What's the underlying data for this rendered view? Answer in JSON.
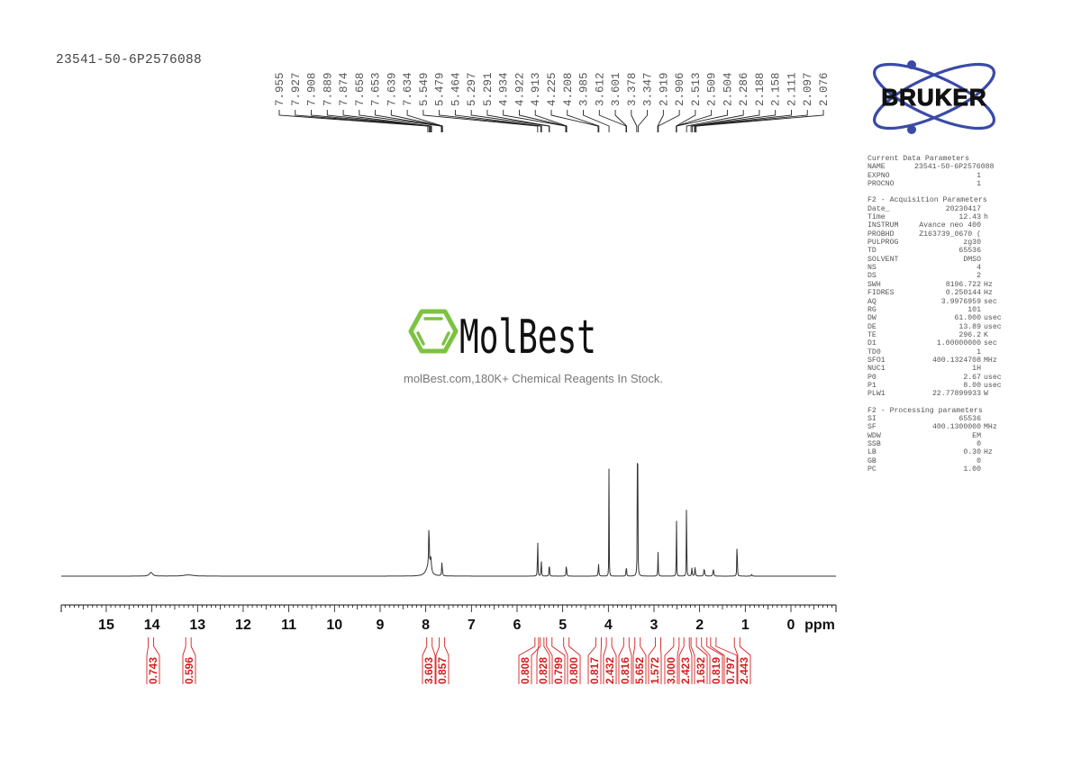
{
  "header": {
    "sample_id": "23541-50-6P2576088"
  },
  "logo": {
    "brand": "BRUKER",
    "brand_color": "#3a4aa8"
  },
  "watermark": {
    "name": "MolBest",
    "tagline": "molBest.com,180K+ Chemical Reagents In Stock.",
    "accent_color": "#7dc242"
  },
  "params": {
    "current": {
      "title": "Current Data Parameters",
      "rows": [
        {
          "k": "NAME",
          "v": "23541-50-6P2576088",
          "u": ""
        },
        {
          "k": "EXPNO",
          "v": "1",
          "u": ""
        },
        {
          "k": "PROCNO",
          "v": "1",
          "u": ""
        }
      ]
    },
    "acquisition": {
      "title": "F2 - Acquisition Parameters",
      "rows": [
        {
          "k": "Date_",
          "v": "20230417",
          "u": ""
        },
        {
          "k": "Time",
          "v": "12.43",
          "u": "h"
        },
        {
          "k": "INSTRUM",
          "v": "Avance neo 400",
          "u": ""
        },
        {
          "k": "PROBHD",
          "v": "Z163739_0670 (",
          "u": ""
        },
        {
          "k": "PULPROG",
          "v": "zg30",
          "u": ""
        },
        {
          "k": "TD",
          "v": "65536",
          "u": ""
        },
        {
          "k": "SOLVENT",
          "v": "DMSO",
          "u": ""
        },
        {
          "k": "NS",
          "v": "4",
          "u": ""
        },
        {
          "k": "DS",
          "v": "2",
          "u": ""
        },
        {
          "k": "SWH",
          "v": "8196.722",
          "u": "Hz"
        },
        {
          "k": "FIDRES",
          "v": "0.250144",
          "u": "Hz"
        },
        {
          "k": "AQ",
          "v": "3.9976959",
          "u": "sec"
        },
        {
          "k": "RG",
          "v": "101",
          "u": ""
        },
        {
          "k": "DW",
          "v": "61.000",
          "u": "usec"
        },
        {
          "k": "DE",
          "v": "13.89",
          "u": "usec"
        },
        {
          "k": "TE",
          "v": "296.2",
          "u": "K"
        },
        {
          "k": "D1",
          "v": "1.00000000",
          "u": "sec"
        },
        {
          "k": "TD0",
          "v": "1",
          "u": ""
        },
        {
          "k": "SFO1",
          "v": "400.1324708",
          "u": "MHz"
        },
        {
          "k": "NUC1",
          "v": "1H",
          "u": ""
        },
        {
          "k": "P0",
          "v": "2.67",
          "u": "usec"
        },
        {
          "k": "P1",
          "v": "8.00",
          "u": "usec"
        },
        {
          "k": "PLW1",
          "v": "22.77899933",
          "u": "W"
        }
      ]
    },
    "processing": {
      "title": "F2 - Processing parameters",
      "rows": [
        {
          "k": "SI",
          "v": "65536",
          "u": ""
        },
        {
          "k": "SF",
          "v": "400.1300000",
          "u": "MHz"
        },
        {
          "k": "WDW",
          "v": "EM",
          "u": ""
        },
        {
          "k": "SSB",
          "v": "0",
          "u": ""
        },
        {
          "k": "LB",
          "v": "0.30",
          "u": "Hz"
        },
        {
          "k": "GB",
          "v": "0",
          "u": ""
        },
        {
          "k": "PC",
          "v": "1.00",
          "u": ""
        }
      ]
    }
  },
  "chart_data": {
    "type": "line",
    "title": "1H NMR spectrum 23541-50-6P2576088",
    "xlabel": "ppm",
    "ylabel": "",
    "xlim": [
      16,
      -1
    ],
    "x_ticks": [
      15,
      14,
      13,
      12,
      11,
      10,
      9,
      8,
      7,
      6,
      5,
      4,
      3,
      2,
      1,
      0
    ],
    "x_unit_label": "ppm",
    "grid": false,
    "peak_labels": [
      "7.955",
      "7.927",
      "7.908",
      "7.889",
      "7.874",
      "7.658",
      "7.653",
      "7.639",
      "7.634",
      "5.549",
      "5.479",
      "5.464",
      "5.297",
      "5.291",
      "4.934",
      "4.922",
      "4.913",
      "4.225",
      "4.208",
      "3.985",
      "3.612",
      "3.601",
      "3.378",
      "3.347",
      "2.919",
      "2.906",
      "2.513",
      "2.509",
      "2.504",
      "2.286",
      "2.188",
      "2.158",
      "2.111",
      "2.097",
      "2.076"
    ],
    "peaks": [
      {
        "ppm": 14.02,
        "height": 0.009,
        "width": 0.08
      },
      {
        "ppm": 13.2,
        "height": 0.003,
        "width": 0.25
      },
      {
        "ppm": 7.93,
        "height": 0.11,
        "width": 0.015
      },
      {
        "ppm": 7.89,
        "height": 0.035,
        "width": 0.03
      },
      {
        "ppm": 7.95,
        "height": 0.02,
        "width": 0.12
      },
      {
        "ppm": 7.645,
        "height": 0.035,
        "width": 0.015
      },
      {
        "ppm": 5.549,
        "height": 0.135,
        "width": 0.008
      },
      {
        "ppm": 5.47,
        "height": 0.05,
        "width": 0.01
      },
      {
        "ppm": 5.294,
        "height": 0.042,
        "width": 0.01
      },
      {
        "ppm": 4.92,
        "height": 0.033,
        "width": 0.012
      },
      {
        "ppm": 4.215,
        "height": 0.03,
        "width": 0.015
      },
      {
        "ppm": 3.985,
        "height": 0.33,
        "width": 0.006
      },
      {
        "ppm": 3.606,
        "height": 0.028,
        "width": 0.012
      },
      {
        "ppm": 3.36,
        "height": 1.0,
        "width": 0.006
      },
      {
        "ppm": 2.912,
        "height": 0.06,
        "width": 0.01
      },
      {
        "ppm": 2.509,
        "height": 0.232,
        "width": 0.006
      },
      {
        "ppm": 2.286,
        "height": 0.44,
        "width": 0.005
      },
      {
        "ppm": 2.17,
        "height": 0.02,
        "width": 0.015
      },
      {
        "ppm": 2.1,
        "height": 0.022,
        "width": 0.015
      },
      {
        "ppm": 1.9,
        "height": 0.018,
        "width": 0.02
      },
      {
        "ppm": 1.7,
        "height": 0.017,
        "width": 0.02
      },
      {
        "ppm": 1.18,
        "height": 0.136,
        "width": 0.008
      },
      {
        "ppm": 0.86,
        "height": 0.004,
        "width": 0.02
      }
    ],
    "integrals": [
      {
        "value": "0.743",
        "ppm": 14.02
      },
      {
        "value": "0.596",
        "ppm": 13.2
      },
      {
        "value": "3.603",
        "ppm": 7.92
      },
      {
        "value": "0.857",
        "ppm": 7.645
      },
      {
        "value": "0.808",
        "ppm": 5.549
      },
      {
        "value": "0.828",
        "ppm": 5.47
      },
      {
        "value": "0.799",
        "ppm": 5.294
      },
      {
        "value": "0.800",
        "ppm": 4.92
      },
      {
        "value": "0.817",
        "ppm": 4.215
      },
      {
        "value": "2.432",
        "ppm": 3.985
      },
      {
        "value": "0.816",
        "ppm": 3.606
      },
      {
        "value": "5.652",
        "ppm": 3.36
      },
      {
        "value": "1.572",
        "ppm": 2.912
      },
      {
        "value": "3.000",
        "ppm": 2.509
      },
      {
        "value": "2.423",
        "ppm": 2.286
      },
      {
        "value": "1.632",
        "ppm": 2.13
      },
      {
        "value": "0.819",
        "ppm": 1.9
      },
      {
        "value": "0.797",
        "ppm": 1.7
      },
      {
        "value": "2.443",
        "ppm": 1.18
      }
    ]
  }
}
